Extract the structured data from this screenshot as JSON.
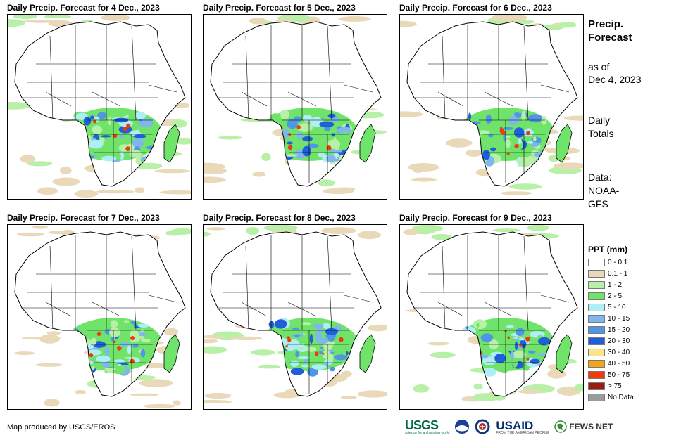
{
  "panels": [
    {
      "title": "Daily Precip. Forecast for 4 Dec., 2023"
    },
    {
      "title": "Daily Precip. Forecast for 5 Dec., 2023"
    },
    {
      "title": "Daily Precip. Forecast for 6 Dec., 2023"
    },
    {
      "title": "Daily Precip. Forecast for 7 Dec., 2023"
    },
    {
      "title": "Daily Precip. Forecast for 8 Dec., 2023"
    },
    {
      "title": "Daily Precip. Forecast for 9 Dec., 2023"
    }
  ],
  "side": {
    "heading_line1": "Precip.",
    "heading_line2": "Forecast",
    "asof_line1": "as of",
    "asof_line2": "Dec 4, 2023",
    "totals_line1": "Daily",
    "totals_line2": "Totals",
    "data_line1": "Data:",
    "data_line2": "NOAA-",
    "data_line3": "GFS"
  },
  "legend": {
    "title": "PPT (mm)",
    "items": [
      {
        "label": "0 - 0.1",
        "color": "#ffffff"
      },
      {
        "label": "0.1 - 1",
        "color": "#ead9b8"
      },
      {
        "label": "1 - 2",
        "color": "#b8f0a8"
      },
      {
        "label": "2 - 5",
        "color": "#6fe36a"
      },
      {
        "label": "5 - 10",
        "color": "#b0eef5"
      },
      {
        "label": "10 - 15",
        "color": "#7fb6ee"
      },
      {
        "label": "15 - 20",
        "color": "#4f96e6"
      },
      {
        "label": "20 - 30",
        "color": "#1f5fd9"
      },
      {
        "label": "30 - 40",
        "color": "#fbe48a"
      },
      {
        "label": "40 - 50",
        "color": "#f9a31a"
      },
      {
        "label": "50 - 75",
        "color": "#ef3a10"
      },
      {
        "label": "> 75",
        "color": "#a01a14"
      },
      {
        "label": "No Data",
        "color": "#9b9b9b"
      }
    ]
  },
  "credit": "Map produced by USGS/EROS",
  "logos": {
    "usgs": "USGS",
    "usgs_tagline": "science for a changing world",
    "noaa_icon": "noaa-icon",
    "seal_icon": "seal-icon",
    "usaid": "USAID",
    "usaid_tagline": "FROM THE AMERICAN PEOPLE",
    "fews": "FEWS NET"
  }
}
